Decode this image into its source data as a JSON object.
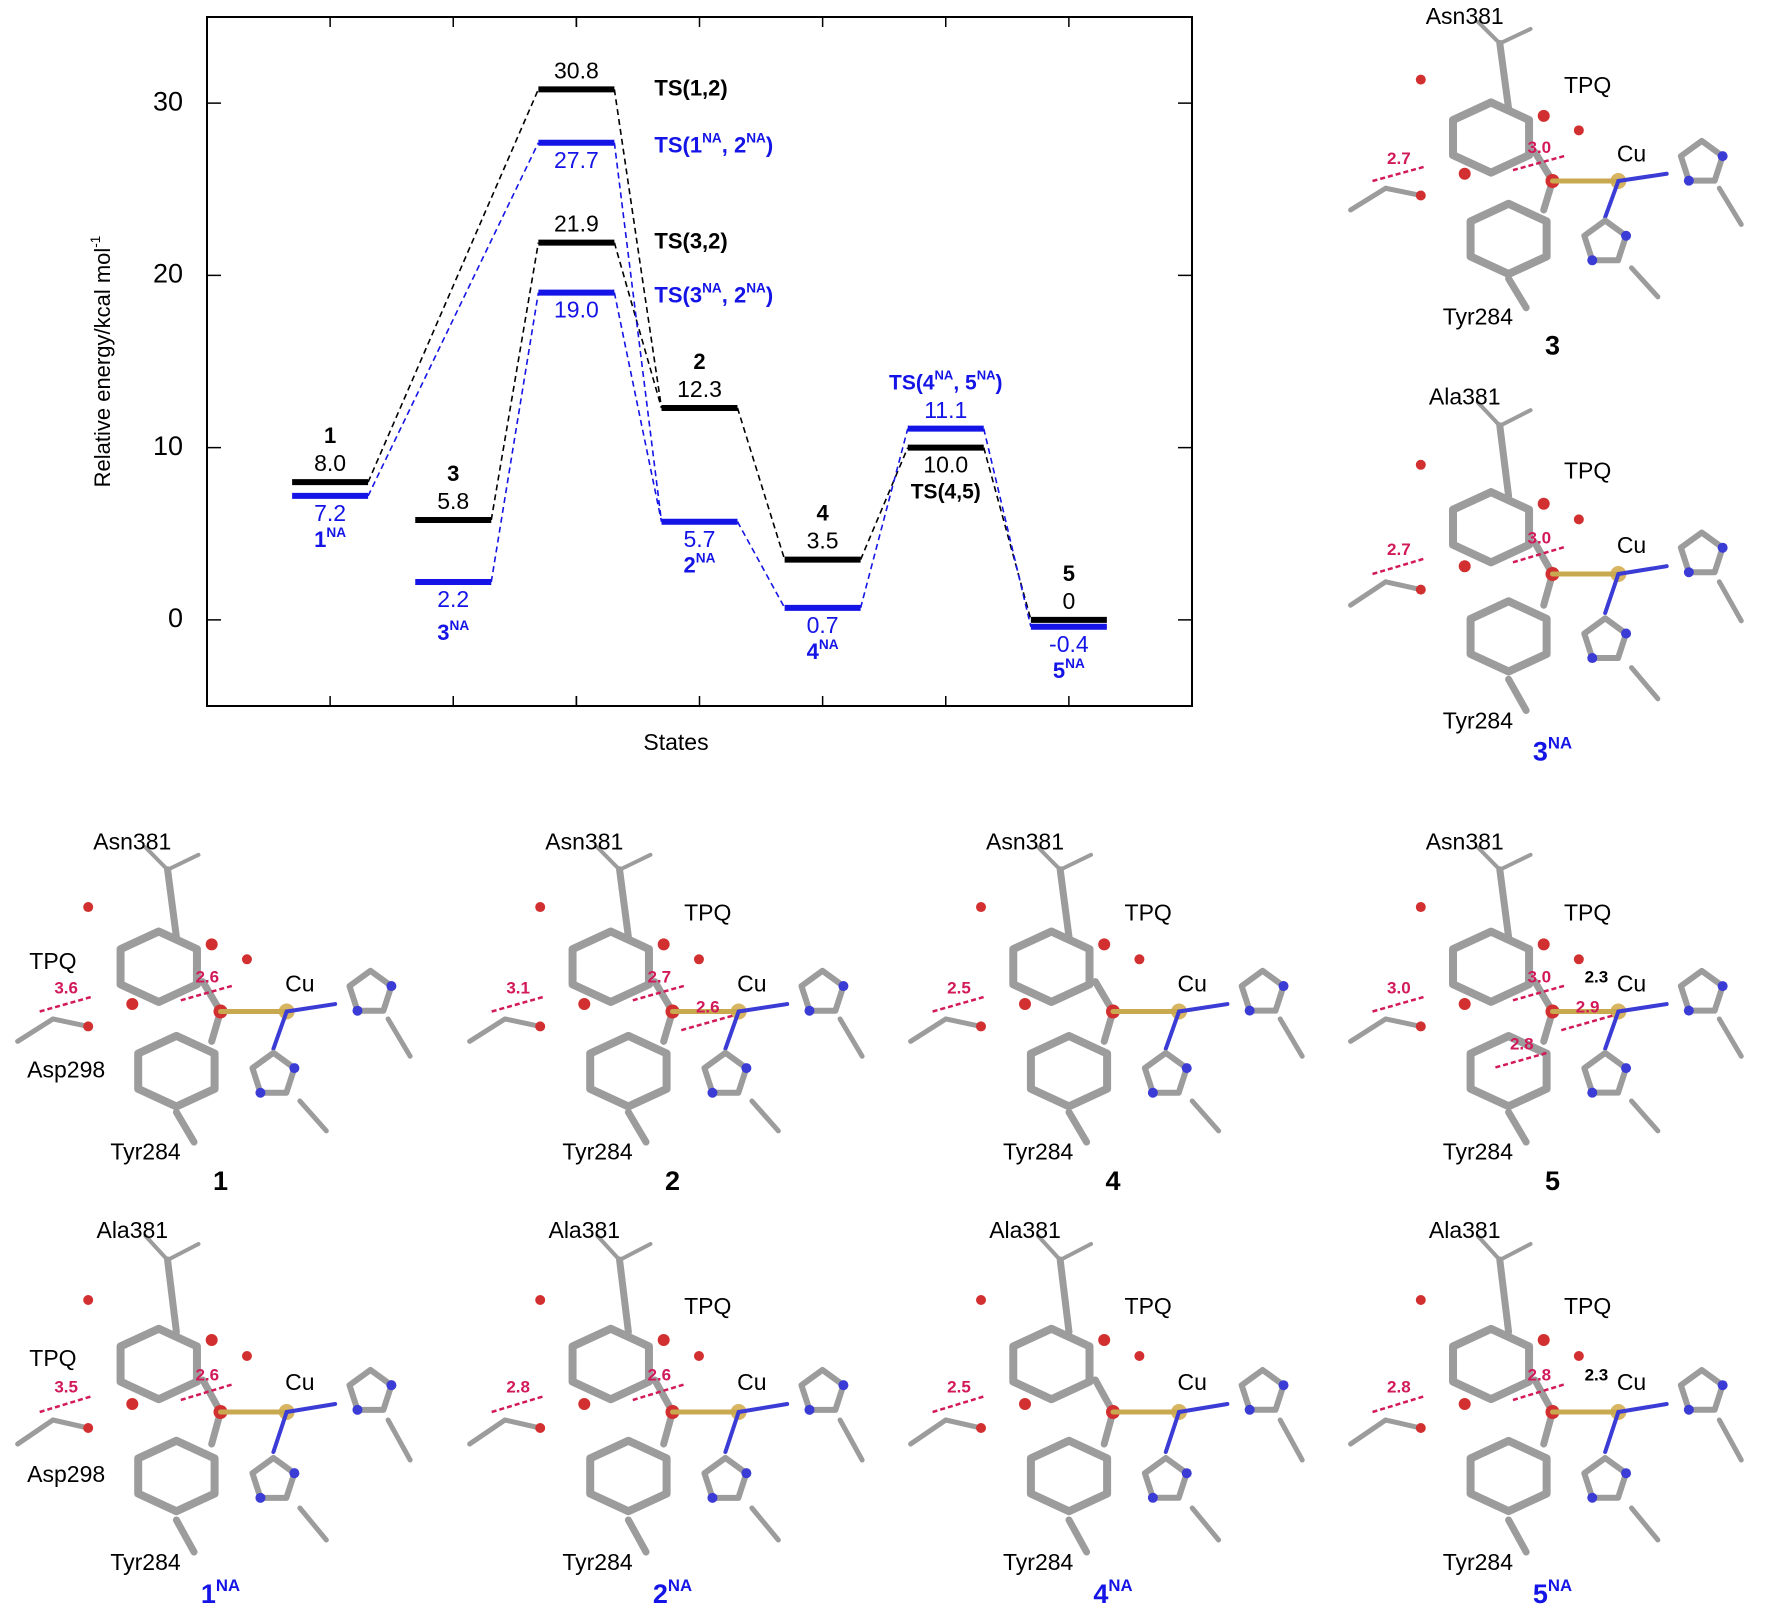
{
  "chart_data": {
    "type": "energy-levels",
    "ylabel": [
      "Relative energy/kcal mol",
      "-1"
    ],
    "xlabel": "States",
    "ylim": [
      -5,
      35
    ],
    "yticks": [
      0,
      10,
      20,
      30
    ],
    "xlim": [
      0,
      8
    ],
    "x": [
      1,
      2,
      3,
      3,
      4,
      5,
      6,
      7
    ],
    "series": [
      {
        "color": "#000000",
        "labels": [
          [
            "1"
          ],
          [
            "3"
          ],
          [
            "TS(1,2)"
          ],
          [
            "TS(3,2)"
          ],
          [
            "2"
          ],
          [
            "4"
          ],
          [
            "TS(4,5)"
          ],
          [
            "5"
          ]
        ],
        "values": [
          8.0,
          5.8,
          30.8,
          21.9,
          12.3,
          3.5,
          10.0,
          0
        ],
        "value_labels": [
          "8.0",
          "5.8",
          "30.8",
          "21.9",
          "12.3",
          "3.5",
          "10.0",
          "0"
        ]
      },
      {
        "color": "#1414e6",
        "labels": [
          [
            "1",
            "NA"
          ],
          [
            "3",
            "NA"
          ],
          [
            "TS(1",
            "NA",
            ", 2",
            "NA",
            ")"
          ],
          [
            "TS(3",
            "NA",
            ", 2",
            "NA",
            ")"
          ],
          [
            "2",
            "NA"
          ],
          [
            "4",
            "NA"
          ],
          [
            "TS(4",
            "NA",
            ", 5",
            "NA",
            ")"
          ],
          [
            "5",
            "NA"
          ]
        ],
        "values": [
          7.2,
          2.2,
          27.7,
          19.0,
          5.7,
          0.7,
          11.1,
          -0.4
        ],
        "value_labels": [
          "7.2",
          "2.2",
          "27.7",
          "19.0",
          "5.7",
          "0.7",
          "11.1",
          "-0.4"
        ]
      }
    ]
  },
  "panels": [
    {
      "caption": [
        "3"
      ],
      "color": "#000000",
      "residue": "Asn381",
      "tpq": "TPQ",
      "cu": "Cu",
      "tyr": "Tyr284",
      "distances": [
        "2.7",
        "3.0"
      ]
    },
    {
      "caption": [
        "3",
        "NA"
      ],
      "color": "#1414e6",
      "residue": "Ala381",
      "tpq": "TPQ",
      "cu": "Cu",
      "tyr": "Tyr284",
      "distances": [
        "2.7",
        "3.0"
      ]
    },
    {
      "caption": [
        "1"
      ],
      "color": "#000000",
      "residue": "Asn381",
      "tpq": "TPQ",
      "cu": "Cu",
      "tyr": "Tyr284",
      "asp": "Asp298",
      "distances": [
        "3.6",
        "2.6"
      ]
    },
    {
      "caption": [
        "2"
      ],
      "color": "#000000",
      "residue": "Asn381",
      "tpq": "TPQ",
      "cu": "Cu",
      "tyr": "Tyr284",
      "distances": [
        "3.1",
        "2.7",
        "2.6"
      ]
    },
    {
      "caption": [
        "4"
      ],
      "color": "#000000",
      "residue": "Asn381",
      "tpq": "TPQ",
      "cu": "Cu",
      "tyr": "Tyr284",
      "distances": [
        "2.5"
      ]
    },
    {
      "caption": [
        "5"
      ],
      "color": "#000000",
      "residue": "Asn381",
      "tpq": "TPQ",
      "cu": "Cu",
      "tyr": "Tyr284",
      "bond": "2.3",
      "distances": [
        "3.0",
        "3.0",
        "2.9",
        "2.8"
      ]
    },
    {
      "caption": [
        "1",
        "NA"
      ],
      "color": "#1414e6",
      "residue": "Ala381",
      "tpq": "TPQ",
      "cu": "Cu",
      "tyr": "Tyr284",
      "asp": "Asp298",
      "distances": [
        "3.5",
        "2.6"
      ]
    },
    {
      "caption": [
        "2",
        "NA"
      ],
      "color": "#1414e6",
      "residue": "Ala381",
      "tpq": "TPQ",
      "cu": "Cu",
      "tyr": "Tyr284",
      "distances": [
        "2.8",
        "2.6"
      ]
    },
    {
      "caption": [
        "4",
        "NA"
      ],
      "color": "#1414e6",
      "residue": "Ala381",
      "tpq": "TPQ",
      "cu": "Cu",
      "tyr": "Tyr284",
      "distances": [
        "2.5"
      ]
    },
    {
      "caption": [
        "5",
        "NA"
      ],
      "color": "#1414e6",
      "residue": "Ala381",
      "tpq": "TPQ",
      "cu": "Cu",
      "tyr": "Tyr284",
      "bond": "2.3",
      "distances": [
        "2.8",
        "2.8"
      ]
    }
  ]
}
